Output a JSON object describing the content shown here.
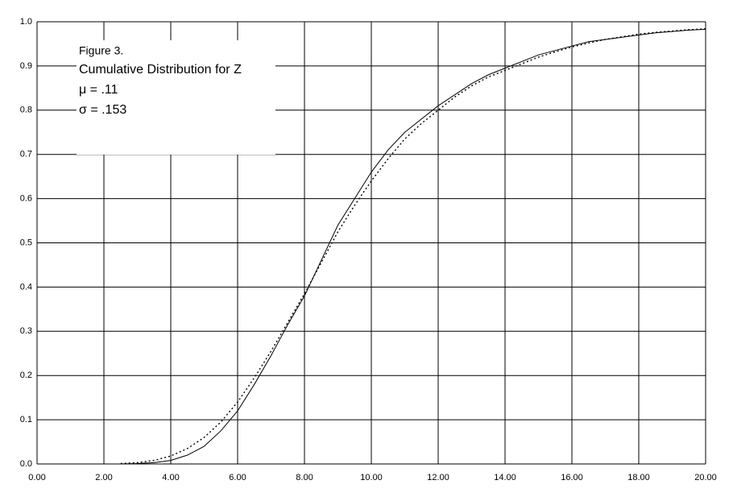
{
  "chart_data": {
    "type": "line",
    "text_box": [
      "Figure 3.",
      "Cumulative Distribution for Z",
      "μ = .11",
      "σ = .153"
    ],
    "x": [
      2.5,
      3,
      3.5,
      4,
      4.5,
      5,
      5.5,
      6,
      6.5,
      7,
      7.5,
      8,
      8.5,
      9,
      9.5,
      10,
      10.5,
      11,
      11.5,
      12,
      12.5,
      13,
      13.5,
      14,
      14.5,
      15,
      15.5,
      16,
      16.5,
      17,
      17.5,
      18,
      18.5,
      19,
      19.5,
      20
    ],
    "series": [
      {
        "color": "#000000",
        "style": "solid",
        "values": [
          0.0,
          0.001,
          0.003,
          0.008,
          0.02,
          0.04,
          0.075,
          0.12,
          0.18,
          0.245,
          0.315,
          0.38,
          0.46,
          0.54,
          0.6,
          0.66,
          0.71,
          0.75,
          0.78,
          0.81,
          0.835,
          0.86,
          0.88,
          0.895,
          0.91,
          0.925,
          0.935,
          0.945,
          0.955,
          0.96,
          0.965,
          0.97,
          0.975,
          0.978,
          0.981,
          0.983
        ]
      },
      {
        "color": "#000000",
        "style": "dotted",
        "values": [
          0.001,
          0.003,
          0.008,
          0.018,
          0.035,
          0.06,
          0.095,
          0.14,
          0.195,
          0.255,
          0.32,
          0.385,
          0.455,
          0.525,
          0.585,
          0.64,
          0.69,
          0.735,
          0.77,
          0.8,
          0.83,
          0.855,
          0.875,
          0.89,
          0.905,
          0.92,
          0.932,
          0.943,
          0.952,
          0.96,
          0.966,
          0.972,
          0.976,
          0.979,
          0.982,
          0.984
        ]
      }
    ],
    "xlim": [
      0,
      20
    ],
    "xticks": [
      {
        "value": 0,
        "label": "0.00"
      },
      {
        "value": 2,
        "label": "2.00"
      },
      {
        "value": 4,
        "label": "4.00"
      },
      {
        "value": 6,
        "label": "6.00"
      },
      {
        "value": 8,
        "label": "8.00"
      },
      {
        "value": 10,
        "label": "10.00"
      },
      {
        "value": 12,
        "label": "12.00"
      },
      {
        "value": 14,
        "label": "14.00"
      },
      {
        "value": 16,
        "label": "16.00"
      },
      {
        "value": 18,
        "label": "18.00"
      },
      {
        "value": 20,
        "label": "20.00"
      }
    ],
    "ylim": [
      0,
      1
    ],
    "yticks": [
      {
        "value": 0,
        "label": "0.0"
      },
      0.1,
      0.2,
      0.3,
      0.4,
      0.5,
      0.6,
      0.7,
      0.8,
      0.9,
      {
        "value": 1,
        "label": "1.0"
      }
    ],
    "grid": true
  }
}
